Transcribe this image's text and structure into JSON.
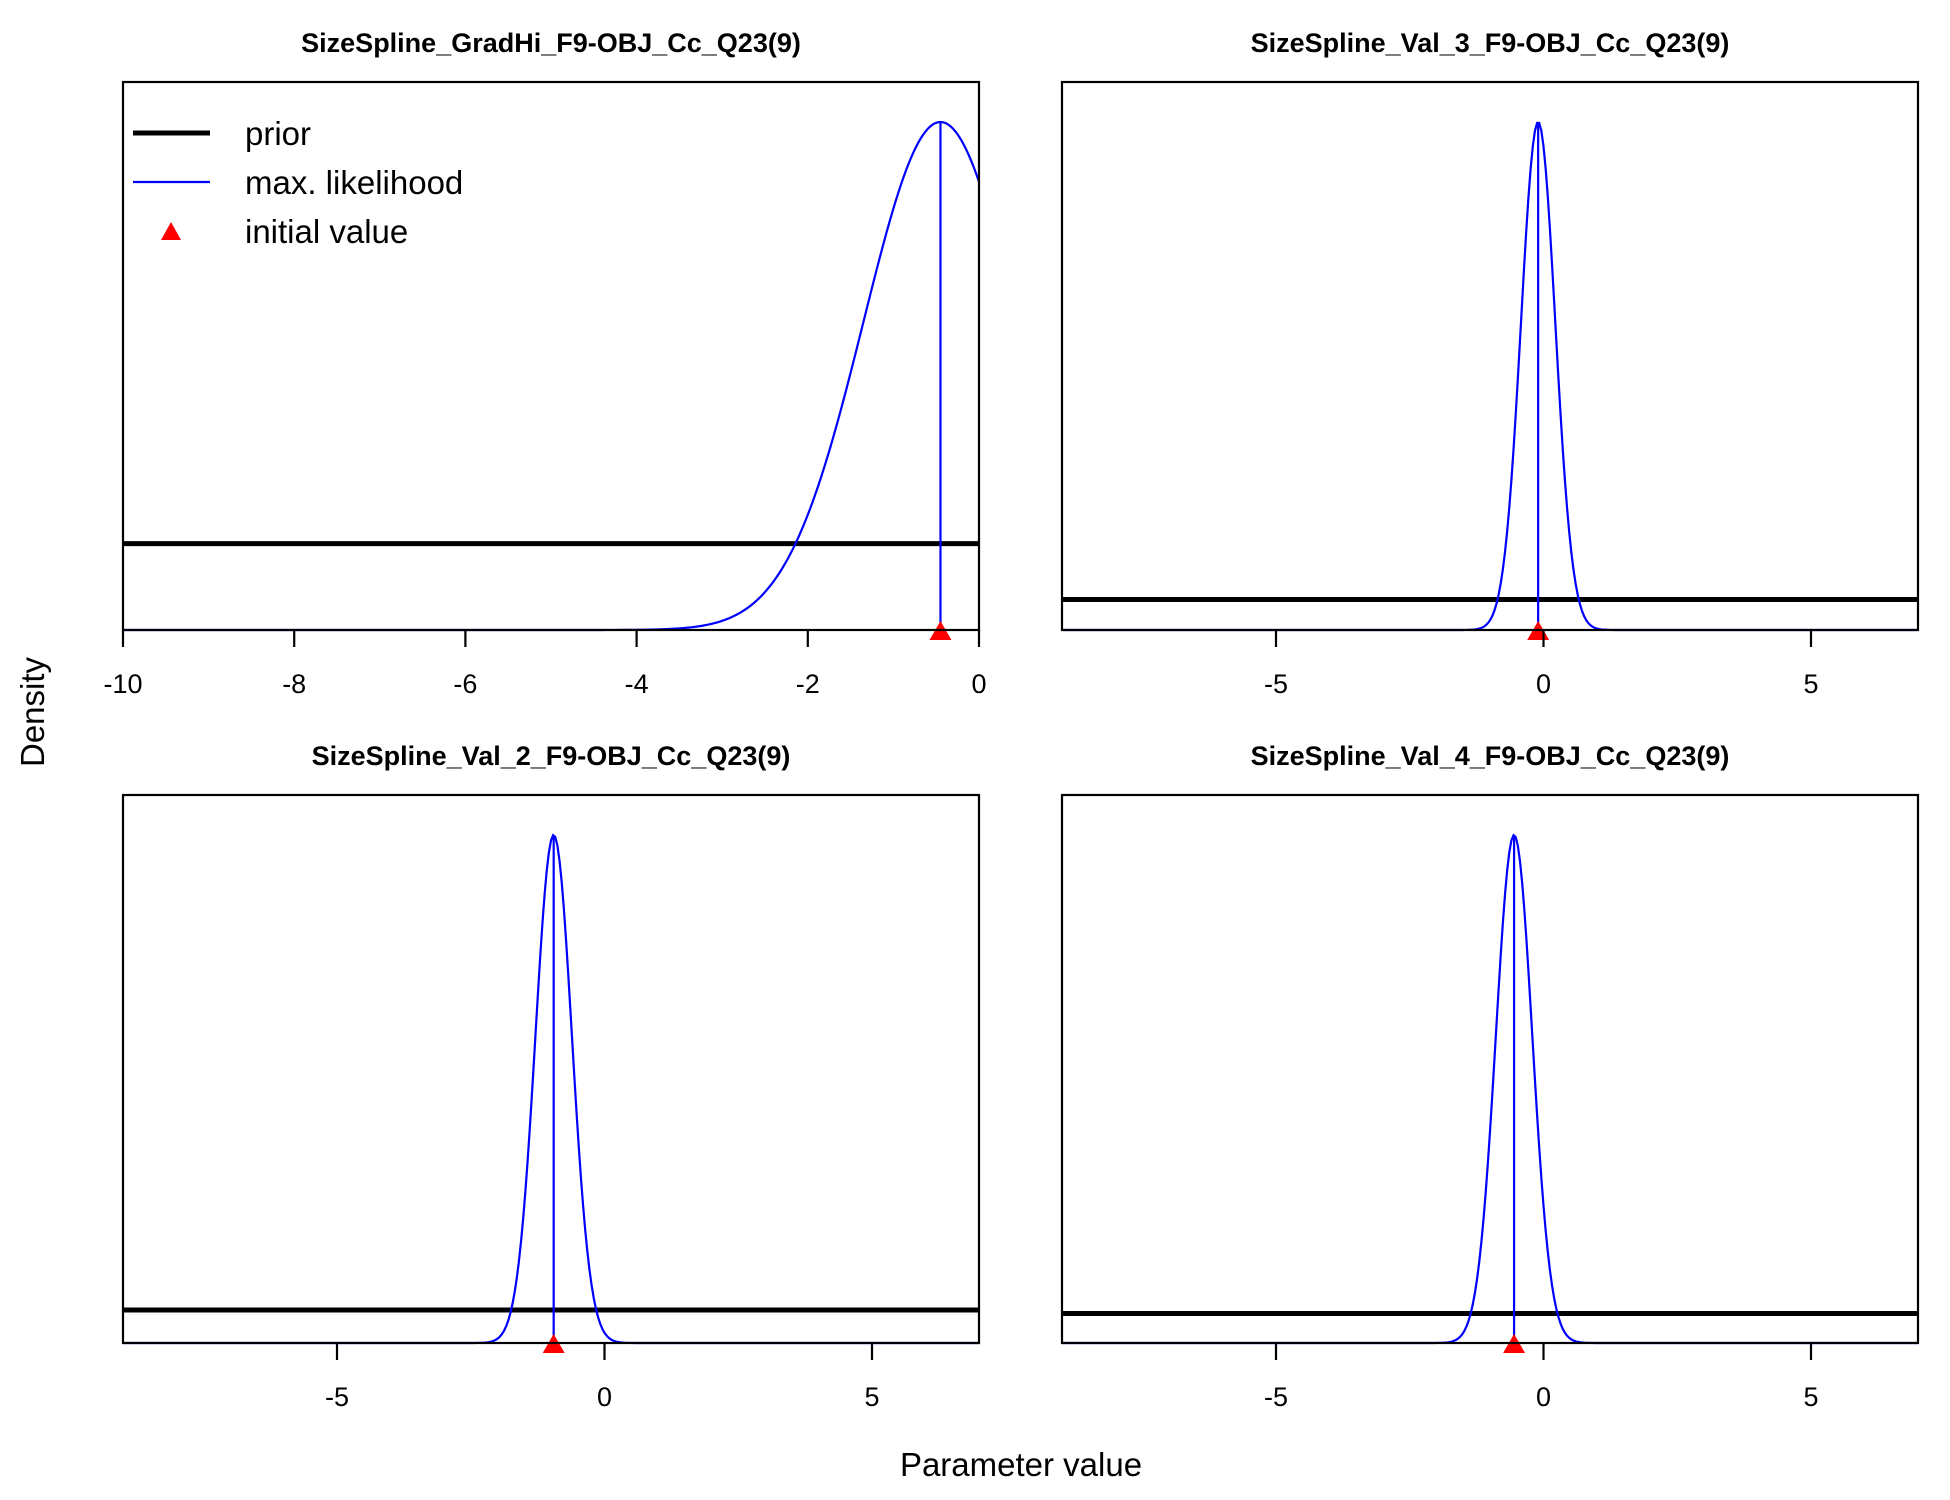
{
  "figure": {
    "xlabel": "Parameter value",
    "ylabel": "Density"
  },
  "legend": {
    "items": [
      {
        "label": "prior",
        "type": "line",
        "color": "#000000",
        "width": "thick"
      },
      {
        "label": "max. likelihood",
        "type": "line",
        "color": "#0000ff",
        "width": "thin"
      },
      {
        "label": "initial value",
        "type": "triangle",
        "color": "#ff0000"
      }
    ],
    "placement": "top-left of first panel"
  },
  "colors": {
    "prior": "#000000",
    "mle": "#0000ff",
    "initial": "#ff0000"
  },
  "chart_data": [
    {
      "type": "line",
      "title": "SizeSpline_GradHi_F9-OBJ_Cc_Q23(9)",
      "xlim": [
        -10,
        0
      ],
      "xticks": [
        -10,
        -8,
        -6,
        -4,
        -2,
        0
      ],
      "xtick_labels": [
        "-10",
        "-8",
        "-6",
        "-4",
        "-2",
        "0"
      ],
      "grid": false,
      "mle": -0.45,
      "sd": 0.9,
      "initial_value": -0.45,
      "prior_level": 0.17
    },
    {
      "type": "line",
      "title": "SizeSpline_Val_3_F9-OBJ_Cc_Q23(9)",
      "xlim": [
        -9,
        7
      ],
      "xticks": [
        -5,
        0,
        5
      ],
      "xtick_labels": [
        "-5",
        "0",
        "5"
      ],
      "grid": false,
      "mle": -0.1,
      "sd": 0.32,
      "initial_value": -0.1,
      "prior_level": 0.06
    },
    {
      "type": "line",
      "title": "SizeSpline_Val_2_F9-OBJ_Cc_Q23(9)",
      "xlim": [
        -9,
        7
      ],
      "xticks": [
        -5,
        0,
        5
      ],
      "xtick_labels": [
        "-5",
        "0",
        "5"
      ],
      "grid": false,
      "mle": -0.95,
      "sd": 0.34,
      "initial_value": -0.95,
      "prior_level": 0.065
    },
    {
      "type": "line",
      "title": "SizeSpline_Val_4_F9-OBJ_Cc_Q23(9)",
      "xlim": [
        -9,
        7
      ],
      "xticks": [
        -5,
        0,
        5
      ],
      "xtick_labels": [
        "-5",
        "0",
        "5"
      ],
      "grid": false,
      "mle": -0.55,
      "sd": 0.34,
      "initial_value": -0.55,
      "prior_level": 0.058
    }
  ]
}
